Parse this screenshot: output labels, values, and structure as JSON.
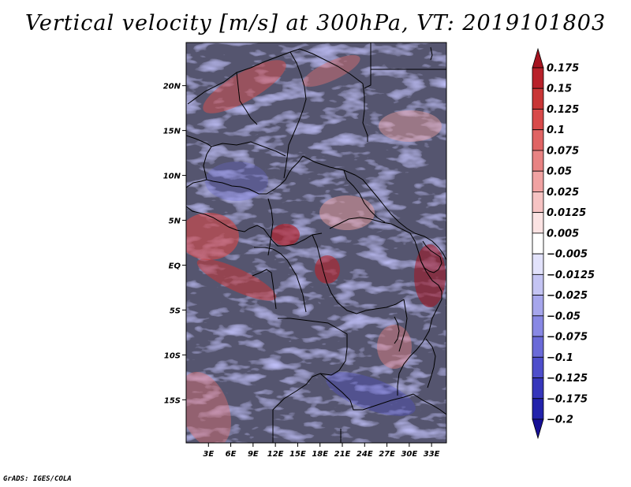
{
  "title": "Vertical velocity [m/s] at 300hPa, VT: 2019101803",
  "credit": "GrADS: IGES/COLA",
  "map": {
    "lat_labels": [
      "20N",
      "15N",
      "10N",
      "5N",
      "EQ",
      "5S",
      "10S",
      "15S"
    ],
    "lat_values": [
      20,
      15,
      10,
      5,
      0,
      -5,
      -10,
      -15
    ],
    "lon_labels": [
      "3E",
      "6E",
      "9E",
      "12E",
      "15E",
      "18E",
      "21E",
      "24E",
      "27E",
      "30E",
      "33E"
    ],
    "lon_values": [
      3,
      6,
      9,
      12,
      15,
      18,
      21,
      24,
      27,
      30,
      33
    ],
    "lat_range": [
      -19.8,
      24.8
    ],
    "lon_range": [
      0,
      35
    ]
  },
  "colorbar": {
    "labels": [
      "0.175",
      "0.15",
      "0.125",
      "0.1",
      "0.075",
      "0.05",
      "0.025",
      "0.0125",
      "0.005",
      "−0.005",
      "−0.0125",
      "−0.025",
      "−0.05",
      "−0.075",
      "−0.1",
      "−0.125",
      "−0.175",
      "−0.2"
    ],
    "colors": [
      "#a51420",
      "#b8212a",
      "#c93636",
      "#d84a4a",
      "#e06464",
      "#e88383",
      "#f0a2a2",
      "#f6c3c3",
      "#fbe3e3",
      "#ffffff",
      "#e2e2fb",
      "#c4c4f3",
      "#a6a6ec",
      "#8888e4",
      "#6a6ad8",
      "#4e4ecb",
      "#3636bb",
      "#2222ab",
      "#160f96"
    ]
  }
}
